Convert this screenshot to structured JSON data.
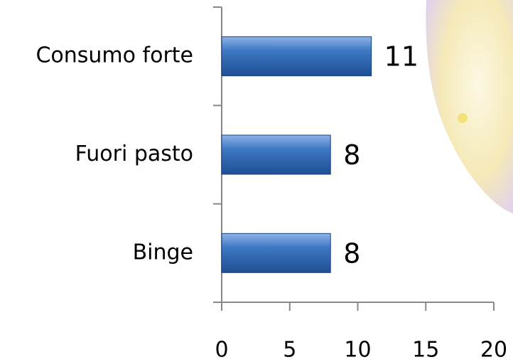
{
  "chart_data": {
    "type": "bar",
    "orientation": "horizontal",
    "categories": [
      "Consumo forte",
      "Fuori pasto",
      "Binge"
    ],
    "values": [
      11,
      8,
      8
    ],
    "color": "#3a70b8",
    "xlim": [
      0,
      20
    ],
    "xticks": [
      0,
      5,
      10,
      15,
      20
    ],
    "data_labels": true
  }
}
